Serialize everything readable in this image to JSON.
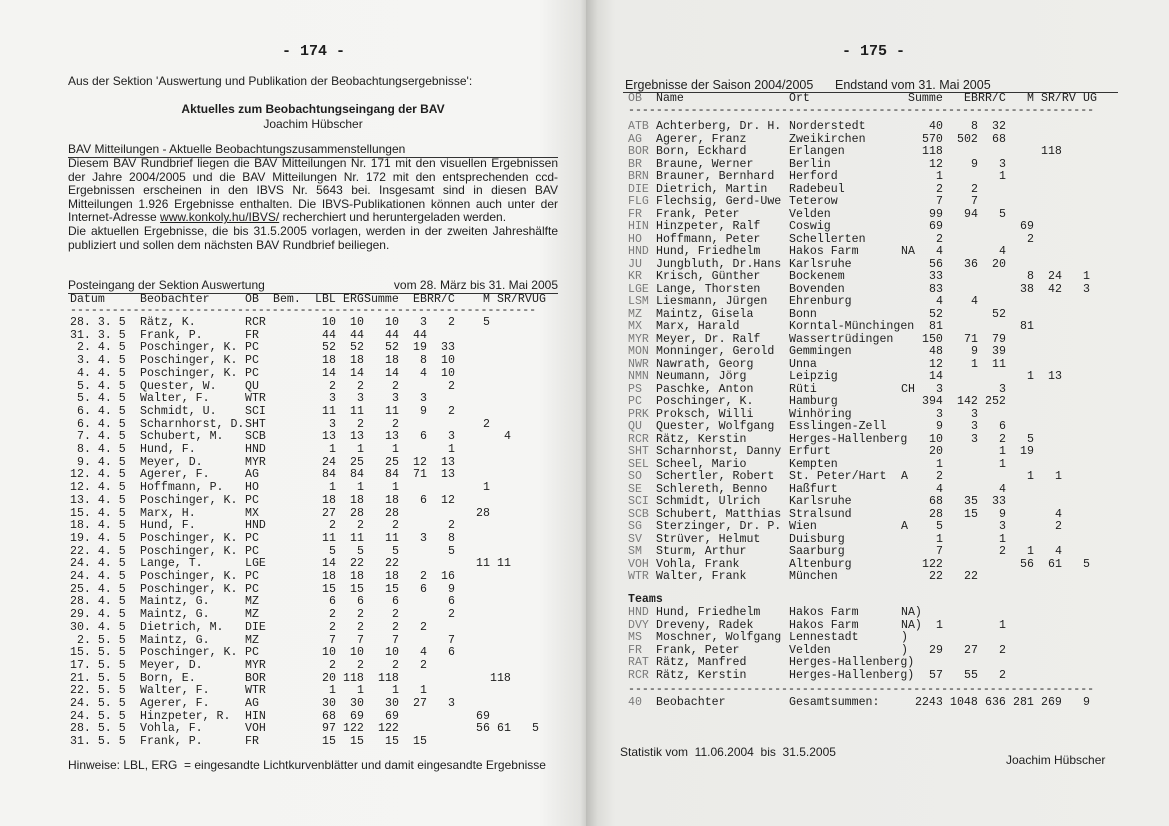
{
  "left_page": {
    "page_number": "- 174 -",
    "intro": "Aus der Sektion 'Auswertung und Publikation der Beobachtungsergebnisse':",
    "title": "Aktuelles zum Beobachtungseingang der BAV",
    "author": "Joachim Hübscher",
    "section_heading": "BAV Mitteilungen - Aktuelle Beobachtungszusammenstellungen",
    "paragraph1_a": "Diesem BAV Rundbrief liegen die BAV Mitteilungen Nr. 171 mit den visuellen Ergebnissen der Jahre 2004/2005 und die BAV Mitteilungen Nr. 172 mit den entsprechenden ccd-Ergebnissen erscheinen in den IBVS Nr. 5643 bei. Insgesamt sind in diesen BAV Mitteilungen 1.926 Ergebnisse enthalten. Die IBVS-Publikationen können auch unter der Internet-Adresse ",
    "paragraph1_link": "www.konkoly.hu/IBVS/",
    "paragraph1_b": " recherchiert und heruntergeladen werden.",
    "paragraph2": "Die aktuellen Ergebnisse, die bis 31.5.2005 vorlagen, werden in der zweiten Jahreshälfte publiziert und sollen dem nächsten BAV Rundbrief beiliegen.",
    "table_title": "Posteingang der Sektion Auswertung",
    "table_period": "vom 28. März bis 31. Mai 2005",
    "table": {
      "headers": [
        "Datum",
        "Beobachter",
        "OB",
        "Bem.",
        "LBL",
        "ERG",
        "Summe",
        "EB",
        "RR/C",
        "M",
        "SR/RV",
        "UG"
      ],
      "separator": "-------------------------------------------------------------------",
      "rows": [
        [
          "28. 3. 5",
          "Rätz, K.",
          "RCR",
          "",
          "10",
          "10",
          "10",
          "3",
          "2",
          "5",
          "",
          ""
        ],
        [
          "31. 3. 5",
          "Frank, P.",
          "FR",
          "",
          "44",
          "44",
          "44",
          "44",
          "",
          "",
          "",
          ""
        ],
        [
          "2. 4. 5",
          "Poschinger, K.",
          "PC",
          "",
          "52",
          "52",
          "52",
          "19",
          "33",
          "",
          "",
          ""
        ],
        [
          "3. 4. 5",
          "Poschinger, K.",
          "PC",
          "",
          "18",
          "18",
          "18",
          "8",
          "10",
          "",
          "",
          ""
        ],
        [
          "4. 4. 5",
          "Poschinger, K.",
          "PC",
          "",
          "14",
          "14",
          "14",
          "4",
          "10",
          "",
          "",
          ""
        ],
        [
          "5. 4. 5",
          "Quester, W.",
          "QU",
          "",
          "2",
          "2",
          "2",
          "",
          "2",
          "",
          "",
          ""
        ],
        [
          "5. 4. 5",
          "Walter, F.",
          "WTR",
          "",
          "3",
          "3",
          "3",
          "3",
          "",
          "",
          "",
          ""
        ],
        [
          "6. 4. 5",
          "Schmidt, U.",
          "SCI",
          "",
          "11",
          "11",
          "11",
          "9",
          "2",
          "",
          "",
          ""
        ],
        [
          "6. 4. 5",
          "Scharnhorst, D.",
          "SHT",
          "",
          "3",
          "2",
          "2",
          "",
          "",
          "2",
          "",
          ""
        ],
        [
          "7. 4. 5",
          "Schubert, M.",
          "SCB",
          "",
          "13",
          "13",
          "13",
          "6",
          "3",
          "",
          "4",
          ""
        ],
        [
          "8. 4. 5",
          "Hund, F.",
          "HND",
          "",
          "1",
          "1",
          "1",
          "",
          "1",
          "",
          "",
          ""
        ],
        [
          "9. 4. 5",
          "Meyer, D.",
          "MYR",
          "",
          "24",
          "25",
          "25",
          "12",
          "13",
          "",
          "",
          ""
        ],
        [
          "12. 4. 5",
          "Agerer, F.",
          "AG",
          "",
          "84",
          "84",
          "84",
          "71",
          "13",
          "",
          "",
          ""
        ],
        [
          "12. 4. 5",
          "Hoffmann, P.",
          "HO",
          "",
          "1",
          "1",
          "1",
          "",
          "",
          "1",
          "",
          ""
        ],
        [
          "13. 4. 5",
          "Poschinger, K.",
          "PC",
          "",
          "18",
          "18",
          "18",
          "6",
          "12",
          "",
          "",
          ""
        ],
        [
          "15. 4. 5",
          "Marx, H.",
          "MX",
          "",
          "27",
          "28",
          "28",
          "",
          "",
          "28",
          "",
          ""
        ],
        [
          "18. 4. 5",
          "Hund, F.",
          "HND",
          "",
          "2",
          "2",
          "2",
          "",
          "2",
          "",
          "",
          ""
        ],
        [
          "19. 4. 5",
          "Poschinger, K.",
          "PC",
          "",
          "11",
          "11",
          "11",
          "3",
          "8",
          "",
          "",
          ""
        ],
        [
          "22. 4. 5",
          "Poschinger, K.",
          "PC",
          "",
          "5",
          "5",
          "5",
          "",
          "5",
          "",
          "",
          ""
        ],
        [
          "24. 4. 5",
          "Lange, T.",
          "LGE",
          "",
          "14",
          "22",
          "22",
          "",
          "",
          "11",
          "11",
          ""
        ],
        [
          "24. 4. 5",
          "Poschinger, K.",
          "PC",
          "",
          "18",
          "18",
          "18",
          "2",
          "16",
          "",
          "",
          ""
        ],
        [
          "25. 4. 5",
          "Poschinger, K.",
          "PC",
          "",
          "15",
          "15",
          "15",
          "6",
          "9",
          "",
          "",
          ""
        ],
        [
          "28. 4. 5",
          "Maintz, G.",
          "MZ",
          "",
          "6",
          "6",
          "6",
          "",
          "6",
          "",
          "",
          ""
        ],
        [
          "29. 4. 5",
          "Maintz, G.",
          "MZ",
          "",
          "2",
          "2",
          "2",
          "",
          "2",
          "",
          "",
          ""
        ],
        [
          "30. 4. 5",
          "Dietrich, M.",
          "DIE",
          "",
          "2",
          "2",
          "2",
          "2",
          "",
          "",
          "",
          ""
        ],
        [
          "2. 5. 5",
          "Maintz, G.",
          "MZ",
          "",
          "7",
          "7",
          "7",
          "",
          "7",
          "",
          "",
          ""
        ],
        [
          "15. 5. 5",
          "Poschinger, K.",
          "PC",
          "",
          "10",
          "10",
          "10",
          "4",
          "6",
          "",
          "",
          ""
        ],
        [
          "17. 5. 5",
          "Meyer, D.",
          "MYR",
          "",
          "2",
          "2",
          "2",
          "2",
          "",
          "",
          "",
          ""
        ],
        [
          "21. 5. 5",
          "Born, E.",
          "BOR",
          "",
          "20",
          "118",
          "118",
          "",
          "",
          "",
          "118",
          ""
        ],
        [
          "22. 5. 5",
          "Walter, F.",
          "WTR",
          "",
          "1",
          "1",
          "1",
          "1",
          "",
          "",
          "",
          ""
        ],
        [
          "24. 5. 5",
          "Agerer, F.",
          "AG",
          "",
          "30",
          "30",
          "30",
          "27",
          "3",
          "",
          "",
          ""
        ],
        [
          "24. 5. 5",
          "Hinzpeter, R.",
          "HIN",
          "",
          "68",
          "69",
          "69",
          "",
          "",
          "69",
          "",
          ""
        ],
        [
          "28. 5. 5",
          "Vohla, F.",
          "VOH",
          "",
          "97",
          "122",
          "122",
          "",
          "",
          "56",
          "61",
          "5"
        ],
        [
          "31. 5. 5",
          "Frank, P.",
          "FR",
          "",
          "15",
          "15",
          "15",
          "15",
          "",
          "",
          "",
          ""
        ]
      ]
    },
    "note": "Hinweise: LBL, ERG  = eingesandte Lichtkurvenblätter und damit eingesandte Ergebnisse"
  },
  "right_page": {
    "page_number": "- 175 -",
    "heading": "Ergebnisse der Saison 2004/2005",
    "heading_status": "Endstand vom 31. Mai 2005",
    "table": {
      "headers": [
        "OB",
        "Name",
        "Ort",
        "Summe",
        "EB",
        "RR/C",
        "M",
        "SR/RV",
        "UG"
      ],
      "separator": "-------------------------------------------------------------------",
      "rows": [
        [
          "ATB",
          "Achterberg, Dr. H.",
          "Norderstedt",
          "",
          "40",
          "8",
          "32",
          "",
          "",
          ""
        ],
        [
          "AG",
          "Agerer, Franz",
          "Zweikirchen",
          "",
          "570",
          "502",
          "68",
          "",
          "",
          ""
        ],
        [
          "BOR",
          "Born, Eckhard",
          "Erlangen",
          "",
          "118",
          "",
          "",
          "",
          "118",
          ""
        ],
        [
          "BR",
          "Braune, Werner",
          "Berlin",
          "",
          "12",
          "9",
          "3",
          "",
          "",
          ""
        ],
        [
          "BRN",
          "Brauner, Bernhard",
          "Herford",
          "",
          "1",
          "",
          "1",
          "",
          "",
          ""
        ],
        [
          "DIE",
          "Dietrich, Martin",
          "Radebeul",
          "",
          "2",
          "2",
          "",
          "",
          "",
          ""
        ],
        [
          "FLG",
          "Flechsig, Gerd-Uwe",
          "Teterow",
          "",
          "7",
          "7",
          "",
          "",
          "",
          ""
        ],
        [
          "FR",
          "Frank, Peter",
          "Velden",
          "",
          "99",
          "94",
          "5",
          "",
          "",
          ""
        ],
        [
          "HIN",
          "Hinzpeter, Ralf",
          "Coswig",
          "",
          "69",
          "",
          "",
          "69",
          "",
          ""
        ],
        [
          "HO",
          "Hoffmann, Peter",
          "Schellerten",
          "",
          "2",
          "",
          "",
          "2",
          "",
          ""
        ],
        [
          "HND",
          "Hund, Friedhelm",
          "Hakos Farm",
          "NA",
          "4",
          "",
          "4",
          "",
          "",
          ""
        ],
        [
          "JU",
          "Jungbluth, Dr.Hans",
          "Karlsruhe",
          "",
          "56",
          "36",
          "20",
          "",
          "",
          ""
        ],
        [
          "KR",
          "Krisch, Günther",
          "Bockenem",
          "",
          "33",
          "",
          "",
          "8",
          "24",
          "1"
        ],
        [
          "LGE",
          "Lange, Thorsten",
          "Bovenden",
          "",
          "83",
          "",
          "",
          "38",
          "42",
          "3"
        ],
        [
          "LSM",
          "Liesmann, Jürgen",
          "Ehrenburg",
          "",
          "4",
          "4",
          "",
          "",
          "",
          ""
        ],
        [
          "MZ",
          "Maintz, Gisela",
          "Bonn",
          "",
          "52",
          "",
          "52",
          "",
          "",
          ""
        ],
        [
          "MX",
          "Marx, Harald",
          "Korntal-Münchingen",
          "",
          "81",
          "",
          "",
          "81",
          "",
          ""
        ],
        [
          "MYR",
          "Meyer, Dr. Ralf",
          "Wassertrüdingen",
          "",
          "150",
          "71",
          "79",
          "",
          "",
          ""
        ],
        [
          "MON",
          "Monninger, Gerold",
          "Gemmingen",
          "",
          "48",
          "9",
          "39",
          "",
          "",
          ""
        ],
        [
          "NWR",
          "Nawrath, Georg",
          "Unna",
          "",
          "12",
          "1",
          "11",
          "",
          "",
          ""
        ],
        [
          "NMN",
          "Neumann, Jörg",
          "Leipzig",
          "",
          "14",
          "",
          "",
          "1",
          "13",
          ""
        ],
        [
          "PS",
          "Paschke, Anton",
          "Rüti",
          "CH",
          "3",
          "",
          "3",
          "",
          "",
          ""
        ],
        [
          "PC",
          "Poschinger, K.",
          "Hamburg",
          "",
          "394",
          "142",
          "252",
          "",
          "",
          ""
        ],
        [
          "PRK",
          "Proksch, Willi",
          "Winhöring",
          "",
          "3",
          "3",
          "",
          "",
          "",
          ""
        ],
        [
          "QU",
          "Quester, Wolfgang",
          "Esslingen-Zell",
          "",
          "9",
          "3",
          "6",
          "",
          "",
          ""
        ],
        [
          "RCR",
          "Rätz, Kerstin",
          "Herges-Hallenberg",
          "",
          "10",
          "3",
          "2",
          "5",
          "",
          ""
        ],
        [
          "SHT",
          "Scharnhorst, Danny",
          "Erfurt",
          "",
          "20",
          "",
          "1",
          "19",
          "",
          ""
        ],
        [
          "SEL",
          "Scheel, Mario",
          "Kempten",
          "",
          "1",
          "",
          "1",
          "",
          "",
          ""
        ],
        [
          "SO",
          "Schertler, Robert",
          "St. Peter/Hart",
          "A",
          "2",
          "",
          "",
          "1",
          "1",
          ""
        ],
        [
          "SE",
          "Schlereth, Benno",
          "Haßfurt",
          "",
          "4",
          "",
          "4",
          "",
          "",
          ""
        ],
        [
          "SCI",
          "Schmidt, Ulrich",
          "Karlsruhe",
          "",
          "68",
          "35",
          "33",
          "",
          "",
          ""
        ],
        [
          "SCB",
          "Schubert, Matthias",
          "Stralsund",
          "",
          "28",
          "15",
          "9",
          "",
          "4",
          ""
        ],
        [
          "SG",
          "Sterzinger, Dr. P.",
          "Wien",
          "A",
          "5",
          "",
          "3",
          "",
          "2",
          ""
        ],
        [
          "SV",
          "Strüver, Helmut",
          "Duisburg",
          "",
          "1",
          "",
          "1",
          "",
          "",
          ""
        ],
        [
          "SM",
          "Sturm, Arthur",
          "Saarburg",
          "",
          "7",
          "",
          "2",
          "1",
          "4",
          ""
        ],
        [
          "VOH",
          "Vohla, Frank",
          "Altenburg",
          "",
          "122",
          "",
          "",
          "56",
          "61",
          "5"
        ],
        [
          "WTR",
          "Walter, Frank",
          "München",
          "",
          "22",
          "22",
          "",
          "",
          "",
          ""
        ]
      ]
    },
    "teams": {
      "label": "Teams",
      "rows": [
        [
          "HND",
          "Hund, Friedhelm",
          "Hakos Farm",
          "NA)",
          "",
          "",
          ""
        ],
        [
          "DVY",
          "Dreveny, Radek",
          "Hakos Farm",
          "NA)",
          "1",
          "",
          "1"
        ],
        [
          "MS",
          "Moschner, Wolfgang",
          "Lennestadt",
          ")",
          "",
          "",
          ""
        ],
        [
          "FR",
          "Frank, Peter",
          "Velden",
          ")",
          "29",
          "27",
          "2"
        ],
        [
          "RAT",
          "Rätz, Manfred",
          "Herges-Hallenberg)",
          "",
          "",
          "",
          ""
        ],
        [
          "RCR",
          "Rätz, Kerstin",
          "Herges-Hallenberg)",
          "",
          "57",
          "55",
          "2"
        ]
      ]
    },
    "separator": "-------------------------------------------------------------------",
    "totals": [
      "40",
      "Beobachter",
      "Gesamtsummen:",
      "2243",
      "1048",
      "636",
      "281",
      "269",
      "9"
    ],
    "footer_period": "Statistik vom  11.06.2004  bis  31.5.2005",
    "footer_author": "Joachim Hübscher"
  }
}
